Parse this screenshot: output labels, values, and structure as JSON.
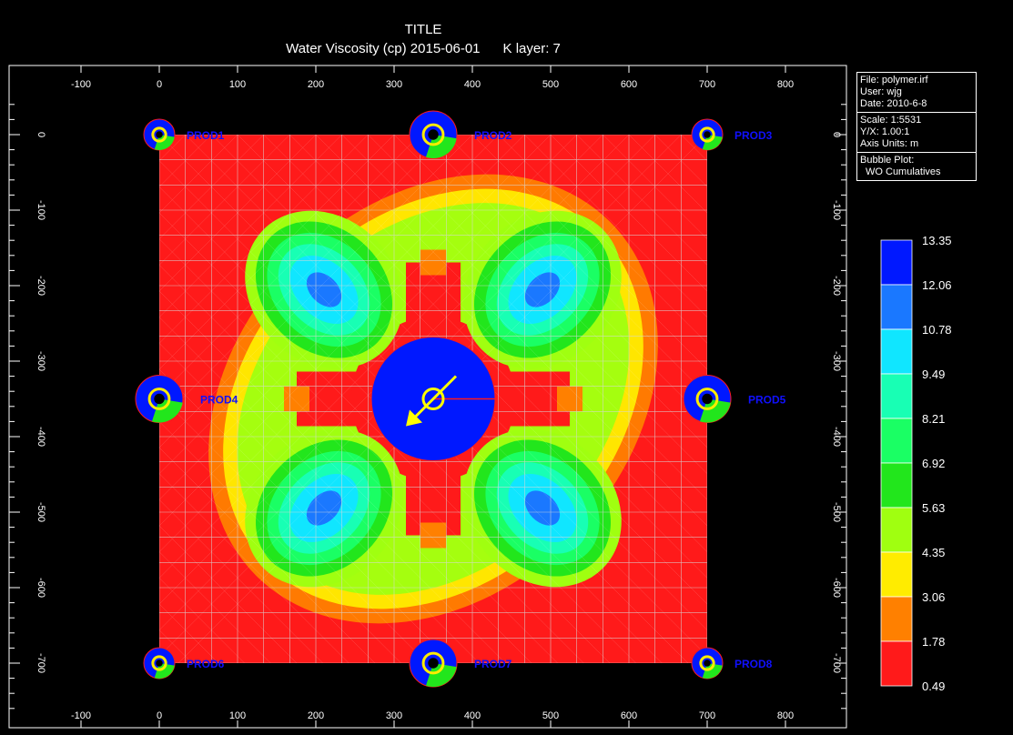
{
  "header": {
    "title": "TITLE",
    "subtitle_var": "Water Viscosity (cp) 2015-06-01",
    "subtitle_layer": "K layer: 7"
  },
  "info_panel": {
    "file": "File: polymer.irf",
    "user": "User:  wjg",
    "date": "Date: 2010-6-8",
    "scale": "Scale: 1:5531",
    "yx": "Y/X: 1.00:1",
    "axis_units": "Axis Units: m",
    "bubble_plot": "Bubble Plot:",
    "bubble_type": "WO Cumulatives"
  },
  "colors": {
    "background": "#000000",
    "grid": "#d8d8d8",
    "well_label": "#1010ff",
    "arrow": "#ffff00"
  },
  "chart_data": {
    "type": "heatmap",
    "title": "TITLE",
    "subtitle": "Water Viscosity (cp) 2015-06-01     K layer: 7",
    "x_ticks": [
      -100,
      0,
      100,
      200,
      300,
      400,
      500,
      600,
      700,
      800
    ],
    "y_ticks": [
      0,
      -100,
      -200,
      -300,
      -400,
      -500,
      -600,
      -700
    ],
    "x_range": [
      -190,
      900
    ],
    "y_range": [
      -760,
      40
    ],
    "grid_range_x": [
      0,
      700
    ],
    "grid_range_y": [
      -700,
      0
    ],
    "grid_cells": 21,
    "colorbar": {
      "labels": [
        "13.35",
        "12.06",
        "10.78",
        "9.49",
        "8.21",
        "6.92",
        "5.63",
        "4.35",
        "3.06",
        "1.78",
        "0.49"
      ],
      "colors": [
        "#0018ff",
        "#1a78ff",
        "#10e6ff",
        "#18ffb4",
        "#1aff64",
        "#22e61c",
        "#a0ff10",
        "#ffec00",
        "#ff8000",
        "#ff1a1a"
      ]
    },
    "wells": [
      {
        "name": "PROD1",
        "x": 0,
        "y": 0,
        "size": "small"
      },
      {
        "name": "PROD2",
        "x": 350,
        "y": 0,
        "size": "large"
      },
      {
        "name": "PROD3",
        "x": 700,
        "y": 0,
        "size": "small"
      },
      {
        "name": "PROD4",
        "x": 0,
        "y": -350,
        "size": "large"
      },
      {
        "name": "PROD5",
        "x": 700,
        "y": -350,
        "size": "large"
      },
      {
        "name": "PROD6",
        "x": 0,
        "y": -700,
        "size": "small"
      },
      {
        "name": "PROD7",
        "x": 350,
        "y": -700,
        "size": "large"
      },
      {
        "name": "PROD8",
        "x": 700,
        "y": -700,
        "size": "small"
      }
    ],
    "injector": {
      "x": 350,
      "y": -350
    }
  }
}
